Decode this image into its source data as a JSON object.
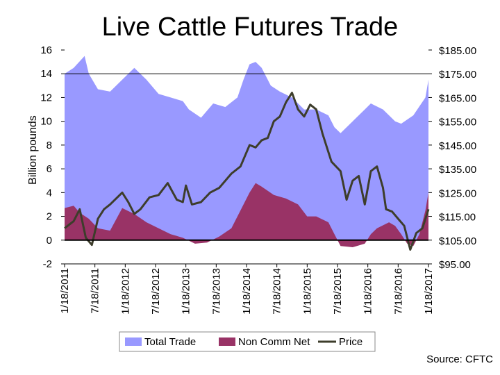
{
  "chart_data": {
    "type": "area",
    "title": "Live Cattle Futures Trade",
    "ylabel": "Billion pounds",
    "ylim": [
      -2,
      16
    ],
    "y_ticks": [
      16,
      14,
      12,
      10,
      8,
      6,
      4,
      2,
      0,
      -2
    ],
    "y2lim": [
      95,
      185
    ],
    "y2_ticks": [
      "$185.00",
      "$175.00",
      "$165.00",
      "$155.00",
      "$145.00",
      "$135.00",
      "$125.00",
      "$115.00",
      "$105.00",
      "$95.00"
    ],
    "x_tick_labels": [
      "1/18/2011",
      "7/18/2011",
      "1/18/2012",
      "7/18/2012",
      "1/18/2013",
      "7/18/2013",
      "1/18/2014",
      "7/18/2014",
      "1/18/2015",
      "7/18/2015",
      "1/18/2016",
      "7/18/2016",
      "1/18/2017"
    ],
    "gridlines": [
      14
    ],
    "legend_position": "bottom",
    "series": [
      {
        "name": "Total Trade",
        "color": "#9999ff",
        "axis": "left",
        "x": [
          2011.05,
          2011.2,
          2011.38,
          2011.45,
          2011.6,
          2011.8,
          2012.0,
          2012.2,
          2012.4,
          2012.6,
          2012.8,
          2013.0,
          2013.1,
          2013.3,
          2013.5,
          2013.7,
          2013.9,
          2014.0,
          2014.1,
          2014.2,
          2014.3,
          2014.45,
          2014.6,
          2014.8,
          2015.0,
          2015.2,
          2015.4,
          2015.5,
          2015.6,
          2015.8,
          2016.0,
          2016.1,
          2016.3,
          2016.5,
          2016.6,
          2016.8,
          2017.0,
          2017.05
        ],
        "values": [
          14.0,
          14.5,
          15.5,
          14.0,
          12.7,
          12.5,
          13.5,
          14.5,
          13.5,
          12.3,
          12.0,
          11.7,
          11.0,
          10.3,
          11.5,
          11.2,
          12.0,
          13.5,
          14.8,
          15.0,
          14.5,
          13.0,
          12.5,
          12.0,
          11.0,
          11.0,
          10.5,
          9.5,
          9.0,
          10.0,
          11.0,
          11.5,
          11.0,
          10.0,
          9.8,
          10.5,
          12.0,
          13.5
        ]
      },
      {
        "name": "Non Comm Net",
        "color": "#993366",
        "axis": "left",
        "x": [
          2011.05,
          2011.2,
          2011.3,
          2011.45,
          2011.6,
          2011.8,
          2012.0,
          2012.2,
          2012.4,
          2012.6,
          2012.8,
          2013.0,
          2013.2,
          2013.4,
          2013.6,
          2013.8,
          2013.95,
          2014.1,
          2014.2,
          2014.3,
          2014.5,
          2014.7,
          2014.9,
          2015.05,
          2015.2,
          2015.4,
          2015.5,
          2015.6,
          2015.8,
          2016.0,
          2016.1,
          2016.2,
          2016.4,
          2016.5,
          2016.6,
          2016.7,
          2016.8,
          2016.9,
          2017.0,
          2017.05
        ],
        "values": [
          2.7,
          2.9,
          2.3,
          1.8,
          1.0,
          0.8,
          2.7,
          2.2,
          1.5,
          1.0,
          0.5,
          0.2,
          -0.3,
          -0.2,
          0.3,
          1.0,
          2.5,
          4.0,
          4.8,
          4.5,
          3.8,
          3.5,
          3.0,
          2.0,
          2.0,
          1.5,
          0.5,
          -0.5,
          -0.6,
          -0.3,
          0.5,
          1.0,
          1.5,
          1.2,
          0.5,
          -0.3,
          -0.5,
          0.5,
          2.5,
          4.0
        ]
      },
      {
        "name": "Price",
        "color": "#3d3d2b",
        "axis": "right",
        "x": [
          2011.05,
          2011.2,
          2011.3,
          2011.4,
          2011.5,
          2011.6,
          2011.7,
          2011.8,
          2012.0,
          2012.1,
          2012.2,
          2012.3,
          2012.45,
          2012.6,
          2012.75,
          2012.9,
          2013.0,
          2013.05,
          2013.15,
          2013.3,
          2013.45,
          2013.6,
          2013.8,
          2013.95,
          2014.1,
          2014.2,
          2014.3,
          2014.4,
          2014.5,
          2014.6,
          2014.7,
          2014.8,
          2014.9,
          2015.0,
          2015.1,
          2015.2,
          2015.3,
          2015.45,
          2015.6,
          2015.7,
          2015.8,
          2015.9,
          2016.0,
          2016.1,
          2016.2,
          2016.3,
          2016.35,
          2016.45,
          2016.55,
          2016.65,
          2016.75,
          2016.85,
          2016.95,
          2017.05
        ],
        "values": [
          110.0,
          113.0,
          118.0,
          106.0,
          103.0,
          114.0,
          118.0,
          120.0,
          125.0,
          121.0,
          116.0,
          118.0,
          123.0,
          124.0,
          129.0,
          122.0,
          121.0,
          128.0,
          120.0,
          121.0,
          125.0,
          127.0,
          133.0,
          136.0,
          145.0,
          144.0,
          147.0,
          148.0,
          155.0,
          157.0,
          163.0,
          167.0,
          160.0,
          157.0,
          162.0,
          160.0,
          150.0,
          138.0,
          134.0,
          122.0,
          130.0,
          132.0,
          120.0,
          134.0,
          136.0,
          127.0,
          118.0,
          117.0,
          114.0,
          111.0,
          101.0,
          108.0,
          110.0,
          118.0
        ]
      }
    ]
  },
  "source": "Source: CFTC"
}
